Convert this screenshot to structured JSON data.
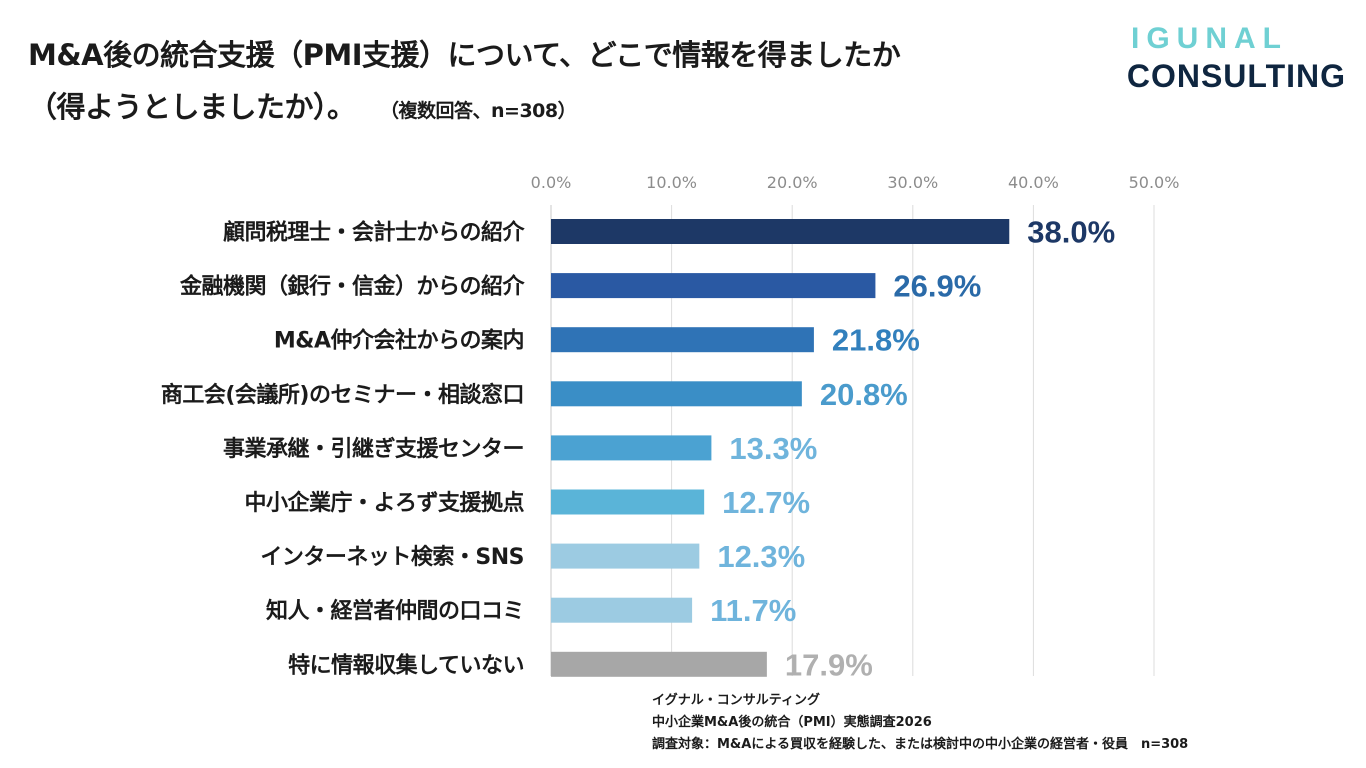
{
  "header": {
    "title_line1": "M&A後の統合支援（PMI支援）について、どこで情報を得ましたか",
    "title_line2": "（得ようとしましたか）。",
    "title_note": "（複数回答、n=308）"
  },
  "logo": {
    "top": "IGUNAL",
    "bottom": "CONSULTING"
  },
  "chart_data": {
    "type": "bar",
    "orientation": "horizontal",
    "title": "M&A後の統合支援（PMI支援）について、どこで情報を得ましたか（得ようとしましたか）。",
    "xlim": [
      0,
      50
    ],
    "ticks": [
      "0.0%",
      "10.0%",
      "20.0%",
      "30.0%",
      "40.0%",
      "50.0%"
    ],
    "grid": true,
    "categories": [
      "顧問税理士・会計士からの紹介",
      "金融機関（銀行・信金）からの紹介",
      "M&A仲介会社からの案内",
      "商工会(会議所)のセミナー・相談窓口",
      "事業承継・引継ぎ支援センター",
      "中小企業庁・よろず支援拠点",
      "インターネット検索・SNS",
      "知人・経営者仲間の口コミ",
      "特に情報収集していない"
    ],
    "values": [
      38.0,
      26.9,
      21.8,
      20.8,
      13.3,
      12.7,
      12.3,
      11.7,
      17.9
    ],
    "value_labels": [
      "38.0%",
      "26.9%",
      "21.8%",
      "20.8%",
      "13.3%",
      "12.7%",
      "12.3%",
      "11.7%",
      "17.9%"
    ],
    "bar_colors": [
      "#1d3866",
      "#2a59a3",
      "#2f73b6",
      "#3a8ec6",
      "#4ba2d2",
      "#5ab4d8",
      "#9ccbe2",
      "#9ccbe2",
      "#a7a7a7"
    ],
    "label_colors": [
      "#1d3866",
      "#2a6aa8",
      "#3280bd",
      "#4a9bcc",
      "#6fb4dc",
      "#6fb4dc",
      "#6fb4dc",
      "#6fb4dc",
      "#b0b0b0"
    ]
  },
  "footer": {
    "line1": "イグナル・コンサルティング",
    "line2": "中小企業M&A後の統合（PMI）実態調査2026",
    "line3": "調査対象：M&Aによる買収を経験した、または検討中の中小企業の経営者・役員　n=308"
  }
}
